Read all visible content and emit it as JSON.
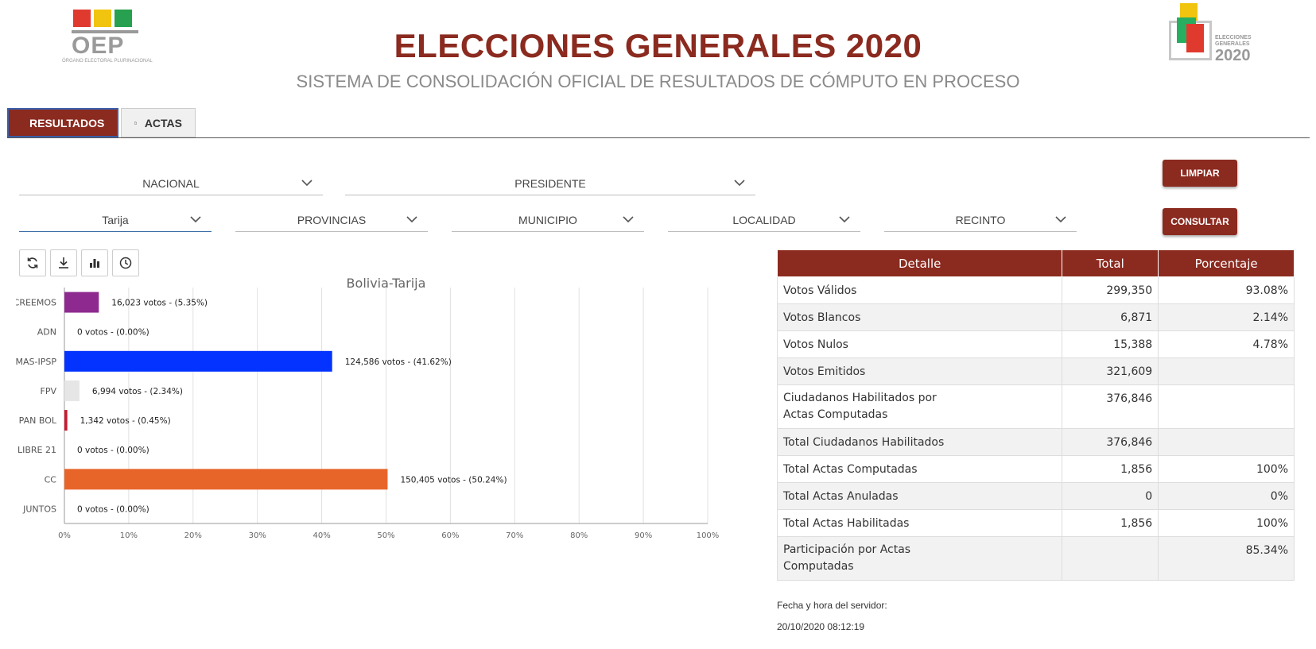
{
  "header": {
    "logo_left_text": "OEP",
    "logo_left_sub": "ÓRGANO ELECTORAL PLURINACIONAL",
    "title": "ELECCIONES GENERALES 2020",
    "subtitle": "SISTEMA DE CONSOLIDACIÓN OFICIAL DE RESULTADOS DE CÓMPUTO EN PROCESO",
    "logo_right_line1": "ELECCIONES",
    "logo_right_line2": "GENERALES",
    "logo_right_year": "2020"
  },
  "tabs": [
    {
      "label": "RESULTADOS",
      "icon": "bar-chart-icon",
      "active": true
    },
    {
      "label": "ACTAS",
      "icon": "document-icon",
      "active": false
    }
  ],
  "filters": {
    "ambito": "NACIONAL",
    "cargo": "PRESIDENTE",
    "departamento": "Tarija",
    "provincia": "PROVINCIAS",
    "municipio": "MUNICIPIO",
    "localidad": "LOCALIDAD",
    "recinto": "RECINTO"
  },
  "buttons": {
    "limpiar": "LIMPIAR",
    "consultar": "CONSULTAR"
  },
  "toolbar": [
    "refresh-icon",
    "download-icon",
    "bar-chart-icon",
    "clock-icon"
  ],
  "colors": {
    "brand": "#8b2a1f",
    "creemos": "#8e2a8f",
    "mas": "#0433ff",
    "fpv": "#e6e6e6",
    "panbol": "#c9182e",
    "cc": "#e8652a"
  },
  "chart_data": {
    "type": "bar",
    "orientation": "horizontal",
    "title": "Bolivia-Tarija",
    "categories": [
      "CREEMOS",
      "ADN",
      "MAS-IPSP",
      "FPV",
      "PAN BOL",
      "LIBRE 21",
      "CC",
      "JUNTOS"
    ],
    "values": [
      5.35,
      0.0,
      41.62,
      2.34,
      0.45,
      0.0,
      50.24,
      0.0
    ],
    "labels": [
      "16,023 votos - (5.35%)",
      "0 votos - (0.00%)",
      "124,586 votos - (41.62%)",
      "6,994 votos - (2.34%)",
      "1,342 votos - (0.45%)",
      "0 votos - (0.00%)",
      "150,405 votos - (50.24%)",
      "0 votos - (0.00%)"
    ],
    "bar_colors": [
      "#8e2a8f",
      "#ffffff",
      "#0433ff",
      "#e6e6e6",
      "#c9182e",
      "#ffffff",
      "#e8652a",
      "#ffffff"
    ],
    "xlim": [
      0,
      100
    ],
    "xticks": [
      "0%",
      "10%",
      "20%",
      "30%",
      "40%",
      "50%",
      "60%",
      "70%",
      "80%",
      "90%",
      "100%"
    ],
    "grid": true
  },
  "results_table": {
    "headers": [
      "Detalle",
      "Total",
      "Porcentaje"
    ],
    "rows": [
      {
        "detalle": "Votos Válidos",
        "total": "299,350",
        "pct": "93.08%"
      },
      {
        "detalle": "Votos Blancos",
        "total": "6,871",
        "pct": "2.14%"
      },
      {
        "detalle": "Votos Nulos",
        "total": "15,388",
        "pct": "4.78%"
      },
      {
        "detalle": "Votos Emitidos",
        "total": "321,609",
        "pct": ""
      },
      {
        "detalle": "Ciudadanos Habilitados por\nActas Computadas",
        "total": "376,846",
        "pct": ""
      },
      {
        "detalle": "Total Ciudadanos Habilitados",
        "total": "376,846",
        "pct": ""
      },
      {
        "detalle": "Total Actas Computadas",
        "total": "1,856",
        "pct": "100%"
      },
      {
        "detalle": "Total Actas Anuladas",
        "total": "0",
        "pct": "0%"
      },
      {
        "detalle": "Total Actas Habilitadas",
        "total": "1,856",
        "pct": "100%"
      },
      {
        "detalle": "Participación por Actas\nComputadas",
        "total": "",
        "pct": "85.34%"
      }
    ]
  },
  "server_time": {
    "label": "Fecha y hora del servidor:",
    "value": "20/10/2020 08:12:19"
  }
}
